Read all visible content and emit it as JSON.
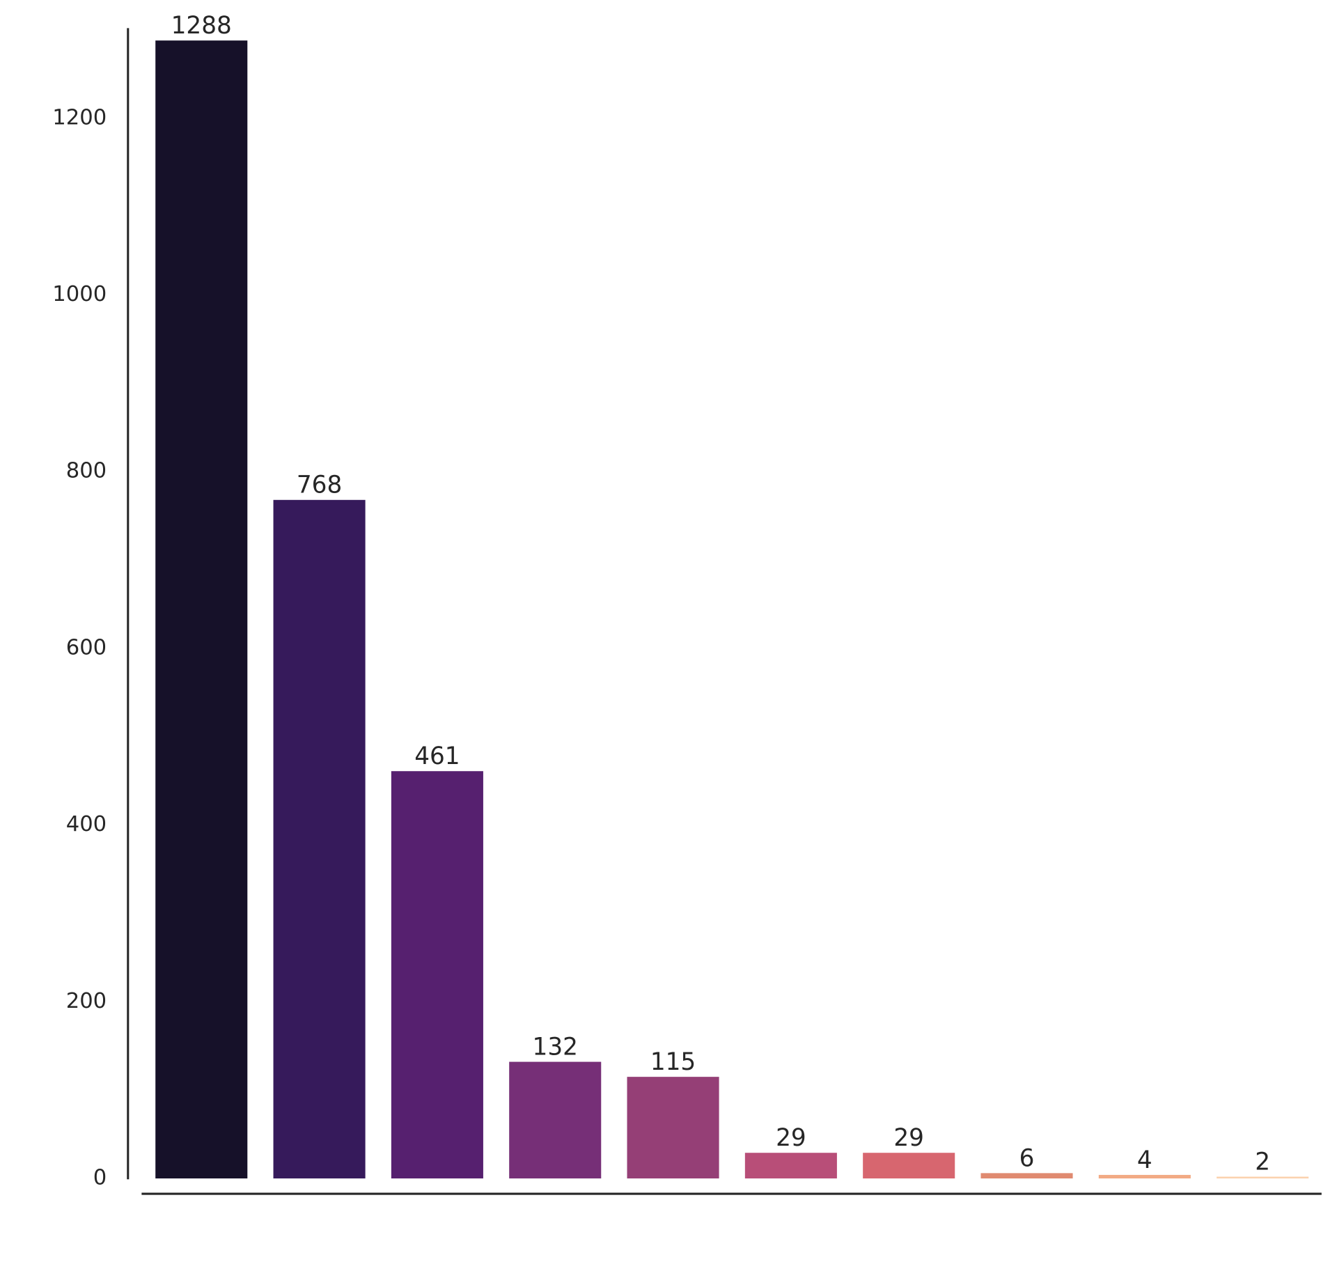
{
  "chart_data": {
    "type": "bar",
    "categories": [
      null,
      null,
      null,
      null,
      null,
      null,
      null,
      null,
      null,
      null
    ],
    "values": [
      1288,
      768,
      461,
      132,
      115,
      29,
      29,
      6,
      4,
      2
    ],
    "colors": [
      "#161129",
      "#361a5b",
      "#56206f",
      "#762f77",
      "#953f76",
      "#b84e78",
      "#d7666f",
      "#e08a70",
      "#f2aa84",
      "#fbd2ae"
    ],
    "ylim": [
      0,
      1302
    ],
    "yticks": [
      0,
      200,
      400,
      600,
      800,
      1000,
      1200
    ],
    "grid": false
  }
}
